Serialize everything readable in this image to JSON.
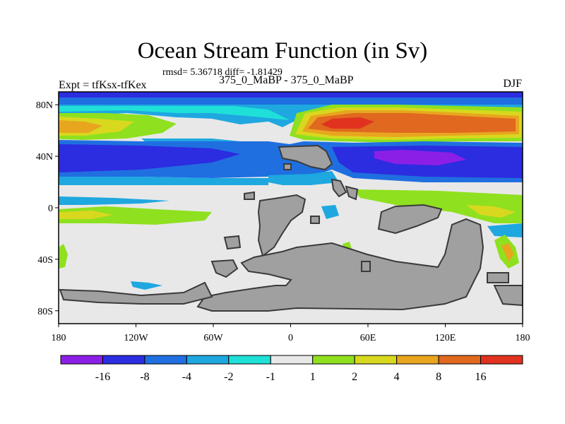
{
  "figure": {
    "title": "Ocean Stream Function (in Sv)",
    "stats": "rmsd= 5.36718 diff= -1.81429",
    "experiment_label": "Expt = tfKsx-tfKex",
    "experiment_name": "375_0_MaBP - 375_0_MaBP",
    "season": "DJF"
  },
  "chart_data": {
    "type": "heatmap",
    "title": "Ocean Stream Function (in Sv)",
    "xlabel": "",
    "ylabel": "",
    "xlim": [
      -180,
      180
    ],
    "ylim": [
      -90,
      90
    ],
    "xticks": [
      {
        "value": -180,
        "label": "180"
      },
      {
        "value": -120,
        "label": "120W"
      },
      {
        "value": -60,
        "label": "60W"
      },
      {
        "value": 0,
        "label": "0"
      },
      {
        "value": 60,
        "label": "60E"
      },
      {
        "value": 120,
        "label": "120E"
      },
      {
        "value": 180,
        "label": "180"
      }
    ],
    "yticks": [
      {
        "value": 80,
        "label": "80N"
      },
      {
        "value": 40,
        "label": "40N"
      },
      {
        "value": 0,
        "label": "0"
      },
      {
        "value": -40,
        "label": "40S"
      },
      {
        "value": -80,
        "label": "80S"
      }
    ],
    "colorbar": {
      "levels": [
        "-16",
        "-8",
        "-4",
        "-2",
        "-1",
        "1",
        "2",
        "4",
        "8",
        "16"
      ],
      "colors": [
        "#8c1fe6",
        "#2c2ce0",
        "#1f6fe0",
        "#1fa7e0",
        "#1fe0d8",
        "#e8e8e8",
        "#8fe01f",
        "#d8d81f",
        "#e8a61f",
        "#e0681f",
        "#e0321f"
      ]
    },
    "bands": [
      {
        "lat": [
          85,
          90
        ],
        "value": -8
      },
      {
        "lat": [
          72,
          85
        ],
        "lon": [
          -180,
          0
        ],
        "value": -2
      },
      {
        "lat": [
          55,
          72
        ],
        "lon": [
          -180,
          -120
        ],
        "value": 8
      },
      {
        "lat": [
          58,
          72
        ],
        "lon": [
          -120,
          -80
        ],
        "value": 2
      },
      {
        "lat": [
          62,
          80
        ],
        "lon": [
          10,
          175
        ],
        "value": 8
      },
      {
        "lat": [
          66,
          74
        ],
        "lon": [
          30,
          90
        ],
        "value": 16
      },
      {
        "lat": [
          25,
          52
        ],
        "lon": [
          -180,
          180
        ],
        "value": -8
      },
      {
        "lat": [
          32,
          46
        ],
        "lon": [
          40,
          140
        ],
        "value": -16
      },
      {
        "lat": [
          -5,
          -15
        ],
        "lon": [
          -180,
          -60
        ],
        "value": 2
      },
      {
        "lat": [
          -35,
          -60
        ],
        "lon": [
          140,
          175
        ],
        "value": 8
      }
    ]
  }
}
